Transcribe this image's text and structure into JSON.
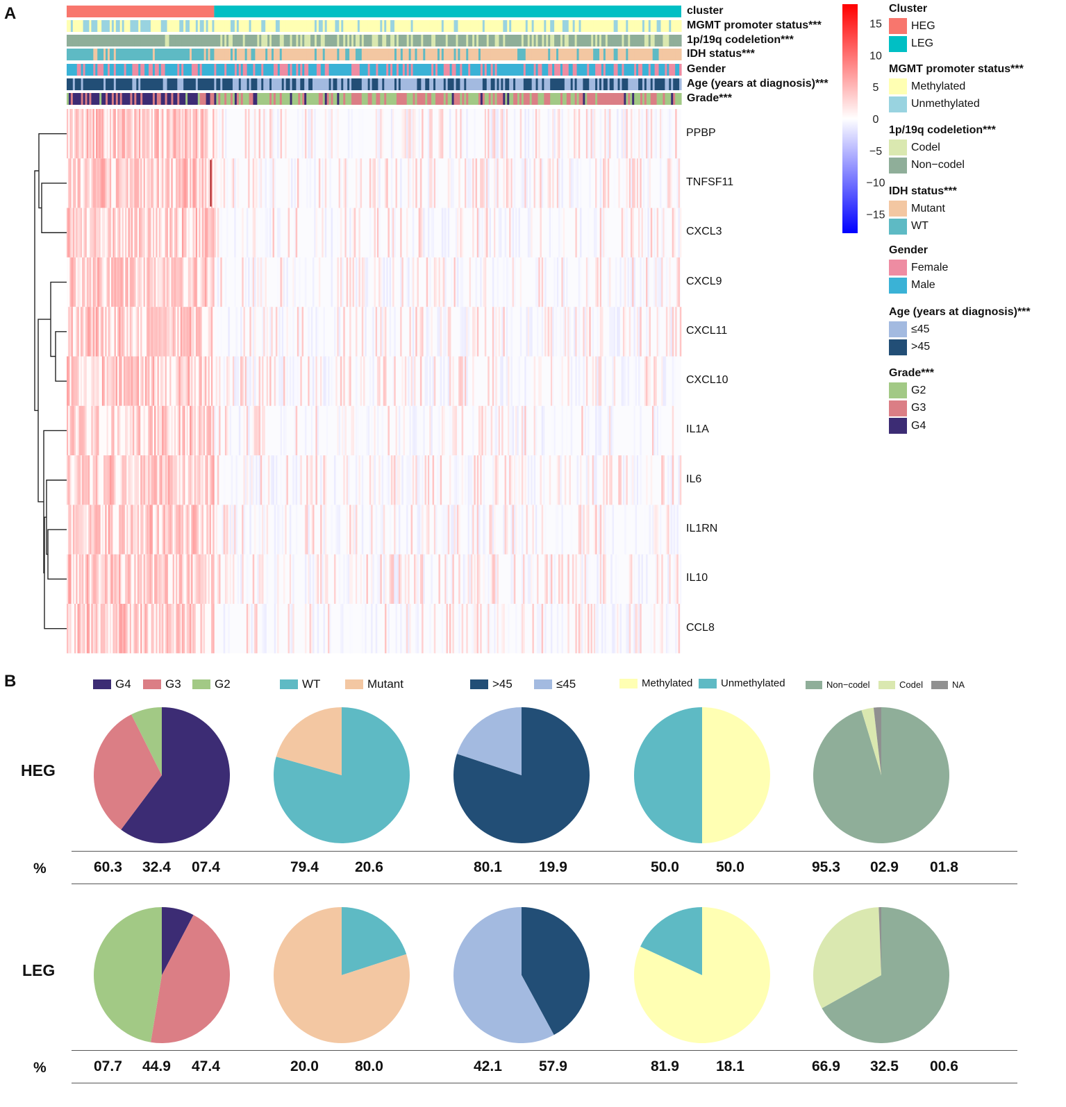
{
  "panel_labels": {
    "a": "A",
    "b": "B"
  },
  "colors": {
    "heg": "#F8766D",
    "leg": "#00BFC4",
    "methylated": "#FFFFB3",
    "unmethylated": "#99D3E0",
    "codel": "#DAE8B0",
    "noncodel": "#8FAE99",
    "mutant": "#F3C7A2",
    "wt": "#5EBAC4",
    "female": "#EE8CA2",
    "male": "#3AB2D6",
    "age_le45": "#A3BAE0",
    "age_gt45": "#224E76",
    "g2": "#A2C985",
    "g3": "#DB7E85",
    "g4": "#3C2C74",
    "na": "#909090"
  },
  "heatmap": {
    "annotation_labels": [
      "cluster",
      "MGMT promoter status***",
      "1p/19q codeletion***",
      "IDH status***",
      "Gender",
      "Age (years at diagnosis)***",
      "Grade***"
    ],
    "genes": [
      "PPBP",
      "TNFSF11",
      "CXCL3",
      "CXCL9",
      "CXCL11",
      "CXCL10",
      "IL1A",
      "IL6",
      "IL1RN",
      "IL10",
      "CCL8"
    ],
    "colorbar_ticks": [
      "15",
      "10",
      "5",
      "0",
      "−5",
      "−10",
      "−15"
    ],
    "colorbar_values": [
      15,
      10,
      5,
      0,
      -5,
      -10,
      -15
    ],
    "colorbar_range": [
      -18,
      18
    ],
    "heg_fraction": 0.24
  },
  "legend": {
    "groups": [
      {
        "title": "Cluster",
        "items": [
          {
            "label": "HEG",
            "color": "#F8766D"
          },
          {
            "label": "LEG",
            "color": "#00BFC4"
          }
        ]
      },
      {
        "title": "MGMT promoter status***",
        "items": [
          {
            "label": "Methylated",
            "color": "#FFFFB3"
          },
          {
            "label": "Unmethylated",
            "color": "#99D3E0"
          }
        ]
      },
      {
        "title": "1p/19q codeletion***",
        "items": [
          {
            "label": "Codel",
            "color": "#DAE8B0"
          },
          {
            "label": "Non−codel",
            "color": "#8FAE99"
          }
        ]
      },
      {
        "title": "IDH status***",
        "items": [
          {
            "label": "Mutant",
            "color": "#F3C7A2"
          },
          {
            "label": "WT",
            "color": "#5EBAC4"
          }
        ]
      },
      {
        "title": "Gender",
        "items": [
          {
            "label": "Female",
            "color": "#EE8CA2"
          },
          {
            "label": "Male",
            "color": "#3AB2D6"
          }
        ]
      },
      {
        "title": "Age (years at diagnosis)***",
        "items": [
          {
            "label": "≤45",
            "color": "#A3BAE0"
          },
          {
            "label": ">45",
            "color": "#224E76"
          }
        ]
      },
      {
        "title": "Grade***",
        "items": [
          {
            "label": "G2",
            "color": "#A2C985"
          },
          {
            "label": "G3",
            "color": "#DB7E85"
          },
          {
            "label": "G4",
            "color": "#3C2C74"
          }
        ]
      }
    ]
  },
  "pies": {
    "row_labels": [
      "HEG",
      "LEG"
    ],
    "pct_symbol": "%",
    "columns": [
      {
        "legend": [
          {
            "label": "G4",
            "color": "#3C2C74"
          },
          {
            "label": "G3",
            "color": "#DB7E85"
          },
          {
            "label": "G2",
            "color": "#A2C985"
          }
        ],
        "heg": [
          "60.3",
          "32.4",
          "07.4"
        ],
        "leg": [
          "07.7",
          "44.9",
          "47.4"
        ],
        "heg_slices": [
          {
            "value": 60.3,
            "color": "#3C2C74"
          },
          {
            "value": 32.4,
            "color": "#DB7E85"
          },
          {
            "value": 7.4,
            "color": "#A2C985"
          }
        ],
        "leg_slices": [
          {
            "value": 7.7,
            "color": "#3C2C74"
          },
          {
            "value": 44.9,
            "color": "#DB7E85"
          },
          {
            "value": 47.4,
            "color": "#A2C985"
          }
        ]
      },
      {
        "legend": [
          {
            "label": "WT",
            "color": "#5EBAC4"
          },
          {
            "label": "Mutant",
            "color": "#F3C7A2"
          }
        ],
        "heg": [
          "79.4",
          "20.6"
        ],
        "leg": [
          "20.0",
          "80.0"
        ],
        "heg_slices": [
          {
            "value": 79.4,
            "color": "#5EBAC4"
          },
          {
            "value": 20.6,
            "color": "#F3C7A2"
          }
        ],
        "leg_slices": [
          {
            "value": 20.0,
            "color": "#5EBAC4"
          },
          {
            "value": 80.0,
            "color": "#F3C7A2"
          }
        ]
      },
      {
        "legend": [
          {
            "label": ">45",
            "color": "#224E76"
          },
          {
            "label": "≤45",
            "color": "#A3BAE0"
          }
        ],
        "heg": [
          "80.1",
          "19.9"
        ],
        "leg": [
          "42.1",
          "57.9"
        ],
        "heg_slices": [
          {
            "value": 80.1,
            "color": "#224E76"
          },
          {
            "value": 19.9,
            "color": "#A3BAE0"
          }
        ],
        "leg_slices": [
          {
            "value": 42.1,
            "color": "#224E76"
          },
          {
            "value": 57.9,
            "color": "#A3BAE0"
          }
        ]
      },
      {
        "legend": [
          {
            "label": "Methylated",
            "color": "#FFFFB3"
          },
          {
            "label": "Unmethylated",
            "color": "#5EBAC4"
          }
        ],
        "heg": [
          "50.0",
          "50.0"
        ],
        "leg": [
          "81.9",
          "18.1"
        ],
        "heg_slices": [
          {
            "value": 50.0,
            "color": "#FFFFB3"
          },
          {
            "value": 50.0,
            "color": "#5EBAC4"
          }
        ],
        "leg_slices": [
          {
            "value": 81.9,
            "color": "#FFFFB3"
          },
          {
            "value": 18.1,
            "color": "#5EBAC4"
          }
        ]
      },
      {
        "legend": [
          {
            "label": "Non−codel",
            "color": "#8FAE99"
          },
          {
            "label": "Codel",
            "color": "#DAE8B0"
          },
          {
            "label": "NA",
            "color": "#909090"
          }
        ],
        "heg": [
          "95.3",
          "02.9",
          "01.8"
        ],
        "leg": [
          "66.9",
          "32.5",
          "00.6"
        ],
        "heg_slices": [
          {
            "value": 95.3,
            "color": "#8FAE99"
          },
          {
            "value": 2.9,
            "color": "#DAE8B0"
          },
          {
            "value": 1.8,
            "color": "#909090"
          }
        ],
        "leg_slices": [
          {
            "value": 66.9,
            "color": "#8FAE99"
          },
          {
            "value": 32.5,
            "color": "#DAE8B0"
          },
          {
            "value": 0.6,
            "color": "#909090"
          }
        ]
      }
    ]
  },
  "chart_data": [
    {
      "type": "heatmap",
      "title": "",
      "rows": [
        "PPBP",
        "TNFSF11",
        "CXCL3",
        "CXCL9",
        "CXCL11",
        "CXCL10",
        "IL1A",
        "IL6",
        "IL1RN",
        "IL10",
        "CCL8"
      ],
      "column_groups": [
        "HEG",
        "LEG"
      ],
      "color_scale": {
        "min": -15,
        "max": 15,
        "low": "#0000FF",
        "mid": "#FFFFFF",
        "high": "#FF0000"
      }
    },
    {
      "type": "pie",
      "title": "Grade",
      "series": [
        {
          "name": "HEG",
          "categories": [
            "G4",
            "G3",
            "G2"
          ],
          "values": [
            60.3,
            32.4,
            7.4
          ]
        },
        {
          "name": "LEG",
          "categories": [
            "G4",
            "G3",
            "G2"
          ],
          "values": [
            7.7,
            44.9,
            47.4
          ]
        }
      ]
    },
    {
      "type": "pie",
      "title": "IDH status",
      "series": [
        {
          "name": "HEG",
          "categories": [
            "WT",
            "Mutant"
          ],
          "values": [
            79.4,
            20.6
          ]
        },
        {
          "name": "LEG",
          "categories": [
            "WT",
            "Mutant"
          ],
          "values": [
            20.0,
            80.0
          ]
        }
      ]
    },
    {
      "type": "pie",
      "title": "Age",
      "series": [
        {
          "name": "HEG",
          "categories": [
            ">45",
            "≤45"
          ],
          "values": [
            80.1,
            19.9
          ]
        },
        {
          "name": "LEG",
          "categories": [
            ">45",
            "≤45"
          ],
          "values": [
            42.1,
            57.9
          ]
        }
      ]
    },
    {
      "type": "pie",
      "title": "MGMT promoter status",
      "series": [
        {
          "name": "HEG",
          "categories": [
            "Methylated",
            "Unmethylated"
          ],
          "values": [
            50.0,
            50.0
          ]
        },
        {
          "name": "LEG",
          "categories": [
            "Methylated",
            "Unmethylated"
          ],
          "values": [
            81.9,
            18.1
          ]
        }
      ]
    },
    {
      "type": "pie",
      "title": "1p/19q codeletion",
      "series": [
        {
          "name": "HEG",
          "categories": [
            "Non−codel",
            "Codel",
            "NA"
          ],
          "values": [
            95.3,
            2.9,
            1.8
          ]
        },
        {
          "name": "LEG",
          "categories": [
            "Non−codel",
            "Codel",
            "NA"
          ],
          "values": [
            66.9,
            32.5,
            0.6
          ]
        }
      ]
    }
  ]
}
